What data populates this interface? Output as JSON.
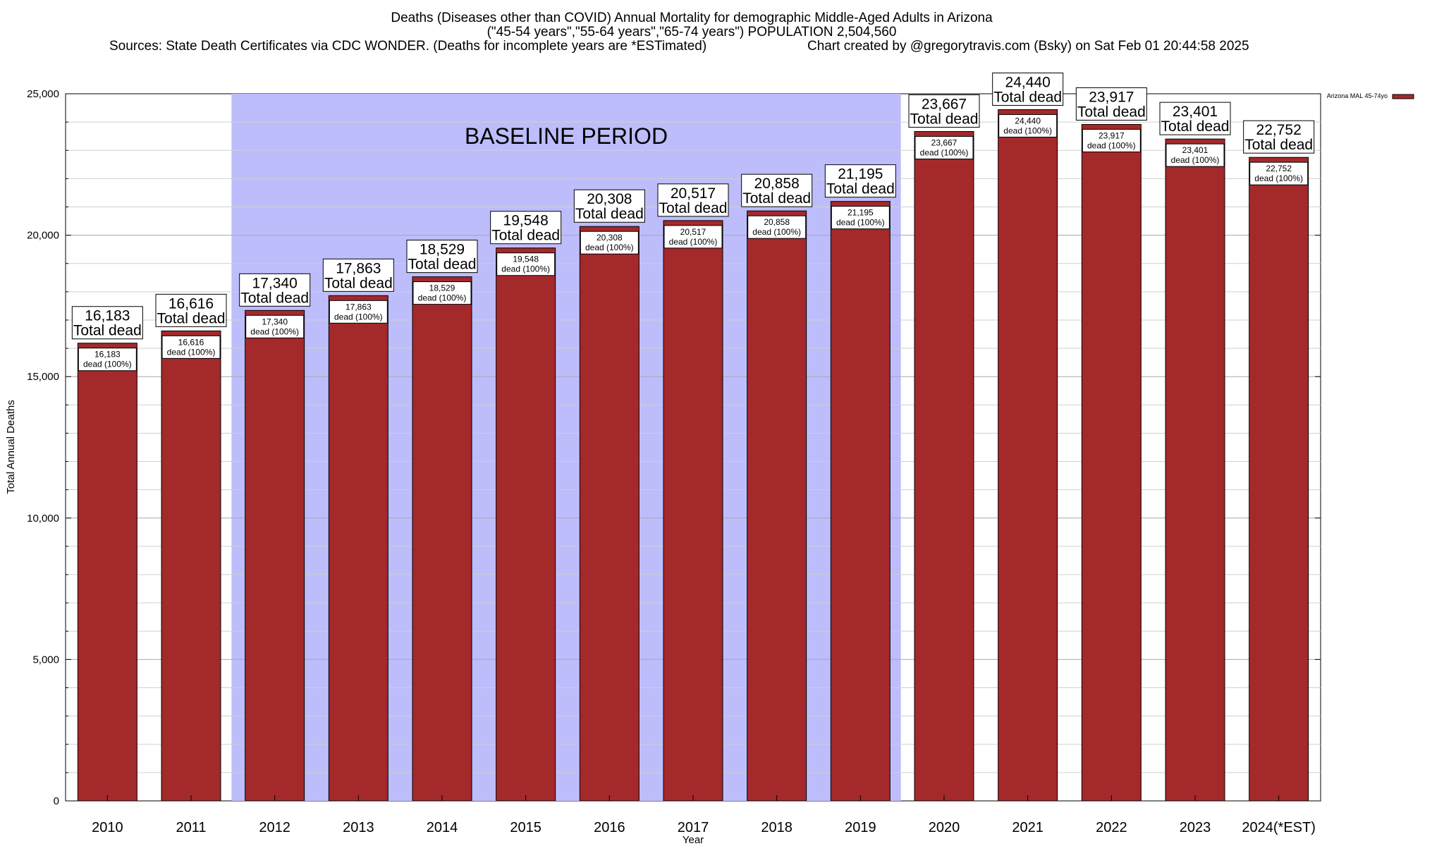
{
  "chart_data": {
    "type": "bar",
    "title_lines": [
      "Deaths (Diseases other than COVID) Annual Mortality for demographic Middle-Aged Adults in Arizona",
      "(\"45-54 years\",\"55-64 years\",\"65-74 years\") POPULATION 2,504,560",
      "Sources: State Death Certificates via CDC WONDER. (Deaths for incomplete years are *ESTimated)",
      "Chart created by @gregorytravis.com (Bsky) on Sat Feb 01 20:44:58 2025"
    ],
    "xlabel": "Year",
    "ylabel": "Total Annual Deaths",
    "ylim": [
      0,
      25000
    ],
    "yticks": [
      0,
      5000,
      10000,
      15000,
      20000,
      25000
    ],
    "ytick_labels": [
      "0",
      "5,000",
      "10,000",
      "15,000",
      "20,000",
      "25,000"
    ],
    "categories": [
      "2010",
      "2011",
      "2012",
      "2013",
      "2014",
      "2015",
      "2016",
      "2017",
      "2018",
      "2019",
      "2020",
      "2021",
      "2022",
      "2023",
      "2024(*EST)"
    ],
    "values": [
      16183,
      16616,
      17340,
      17863,
      18529,
      19548,
      20308,
      20517,
      20858,
      21195,
      23667,
      24440,
      23917,
      23401,
      22752
    ],
    "value_labels": [
      "16,183",
      "16,616",
      "17,340",
      "17,863",
      "18,529",
      "19,548",
      "20,308",
      "20,517",
      "20,858",
      "21,195",
      "23,667",
      "24,440",
      "23,917",
      "23,401",
      "22,752"
    ],
    "total_suffix": "Total dead",
    "segment_suffix": "dead (100%)",
    "series": [
      {
        "name": "Arizona MAL 45-74yo",
        "values": [
          16183,
          16616,
          17340,
          17863,
          18529,
          19548,
          20308,
          20517,
          20858,
          21195,
          23667,
          24440,
          23917,
          23401,
          22752
        ]
      }
    ],
    "annotation": {
      "text": "BASELINE PERIOD",
      "from_category": "2012",
      "to_category": "2019"
    },
    "legend_position": "top-right",
    "grid": "horizontal",
    "colors": {
      "bar": "#a4292b",
      "baseline_band": "#bdbdfc",
      "bar_outline": "#000000"
    }
  }
}
